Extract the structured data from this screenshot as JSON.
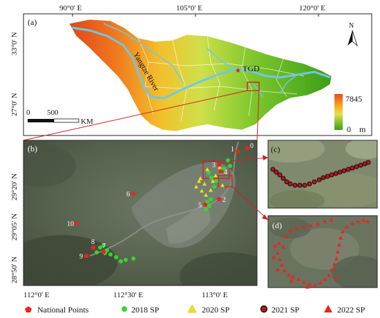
{
  "panels": {
    "a": "(a)",
    "b": "(b)",
    "c": "(c)",
    "d": "(d)"
  },
  "top_map": {
    "lon_ticks": [
      "90°0' E",
      "105°0' E",
      "120°0' E"
    ],
    "lat_ticks": [
      "33°0' N",
      "27°0' N"
    ],
    "river_label": "Yangtze River",
    "dam_label": "TGD",
    "legend_max": "7845",
    "legend_min": "0",
    "legend_unit": "m",
    "legend_colors": [
      "#e84a1c",
      "#f5a21d",
      "#e8e04a",
      "#7cc22a",
      "#3e9f1a"
    ],
    "scale_zero": "0",
    "scale_value": "500",
    "scale_unit": "KM",
    "north_label": "N"
  },
  "detail_map": {
    "lat_ticks": [
      "29°20' N",
      "29°05' N",
      "28°50' N"
    ],
    "lon_ticks": [
      "112°0' E",
      "112°30' E",
      "113°0' E"
    ],
    "national_point_labels": [
      "0",
      "1",
      "2",
      "3",
      "4",
      "5",
      "6",
      "7",
      "8",
      "9",
      "10"
    ]
  },
  "legend": {
    "items": [
      {
        "label": "National Points",
        "color": "#e8251f",
        "symbol": "pentagon"
      },
      {
        "label": "2018 SP",
        "color": "#35d435",
        "symbol": "dot"
      },
      {
        "label": "2020 SP",
        "color": "#f0e01a",
        "symbol": "triangle"
      },
      {
        "label": "2021 SP",
        "color": "#c0121a",
        "symbol": "ring"
      },
      {
        "label": "2022 SP",
        "color": "#e8251f",
        "symbol": "triangle"
      }
    ]
  }
}
